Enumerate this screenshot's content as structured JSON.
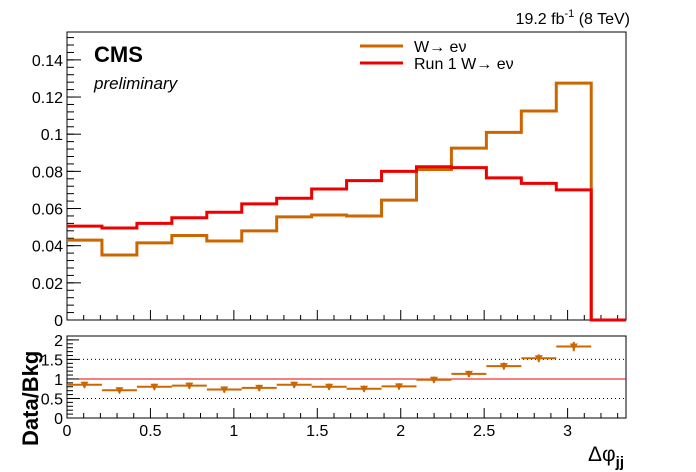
{
  "header": {
    "lumi_text": "19.2 fb",
    "lumi_exp": "-1",
    "lumi_energy": " (8 TeV)",
    "experiment": "CMS",
    "status": "preliminary"
  },
  "chart_data": [
    {
      "type": "line",
      "subtype": "step-histogram",
      "xlabel": "Δφ",
      "xlabel_sub": "jj",
      "ylabel": "",
      "xlim": [
        0,
        3.35
      ],
      "ylim": [
        0,
        0.155
      ],
      "x_ticks": [
        0,
        0.5,
        1,
        1.5,
        2,
        2.5,
        3
      ],
      "x_tick_labels": [
        "0",
        "0.5",
        "1",
        "1.5",
        "2",
        "2.5",
        "3"
      ],
      "y_ticks": [
        0,
        0.02,
        0.04,
        0.06,
        0.08,
        0.1,
        0.12,
        0.14
      ],
      "y_tick_labels": [
        "0",
        "0.02",
        "0.04",
        "0.06",
        "0.08",
        "0.1",
        "0.12",
        "0.14"
      ],
      "legend_position": "top-right",
      "bin_edges": [
        0,
        0.2094,
        0.4189,
        0.6283,
        0.8378,
        1.0472,
        1.2566,
        1.4661,
        1.6755,
        1.885,
        2.0944,
        2.3038,
        2.5133,
        2.7227,
        2.9322,
        3.1416,
        3.35
      ],
      "series": [
        {
          "name": "W→ eν",
          "color": "#cc6600",
          "values": [
            0.043,
            0.035,
            0.0415,
            0.0455,
            0.0425,
            0.048,
            0.0555,
            0.0565,
            0.056,
            0.0645,
            0.081,
            0.0925,
            0.101,
            0.1125,
            0.1275,
            0.0
          ]
        },
        {
          "name": "Run 1 W→ eν",
          "color": "#ee0000",
          "values": [
            0.0505,
            0.0495,
            0.052,
            0.055,
            0.058,
            0.0625,
            0.0655,
            0.0705,
            0.075,
            0.08,
            0.0825,
            0.082,
            0.0765,
            0.0735,
            0.07,
            0.0
          ]
        }
      ]
    },
    {
      "type": "scatter",
      "subtype": "ratio-with-errors",
      "xlabel": "Δφ",
      "xlabel_sub": "jj",
      "ylabel": "Data/Bkg",
      "xlim": [
        0,
        3.35
      ],
      "ylim": [
        0,
        2.1
      ],
      "x_ticks": [
        0,
        0.5,
        1,
        1.5,
        2,
        2.5,
        3
      ],
      "x_tick_labels": [
        "0",
        "0.5",
        "1",
        "1.5",
        "2",
        "2.5",
        "3"
      ],
      "y_ticks": [
        0,
        0.5,
        1,
        1.5,
        2
      ],
      "y_tick_labels": [
        "0",
        "0.5",
        "1",
        "1.5",
        "2"
      ],
      "reference_line": 1,
      "dotted_lines": [
        0.5,
        1.5
      ],
      "series": [
        {
          "color": "#cc6600",
          "x": [
            0.1047,
            0.3142,
            0.5236,
            0.733,
            0.9425,
            1.1519,
            1.3614,
            1.5708,
            1.7802,
            1.9897,
            2.1991,
            2.4086,
            2.618,
            2.8274,
            3.0369
          ],
          "values": [
            0.85,
            0.71,
            0.8,
            0.83,
            0.73,
            0.77,
            0.85,
            0.8,
            0.75,
            0.81,
            0.98,
            1.13,
            1.33,
            1.53,
            1.83
          ],
          "errors": [
            0.08,
            0.08,
            0.08,
            0.08,
            0.08,
            0.08,
            0.08,
            0.08,
            0.08,
            0.08,
            0.08,
            0.08,
            0.09,
            0.1,
            0.12
          ]
        }
      ]
    }
  ]
}
